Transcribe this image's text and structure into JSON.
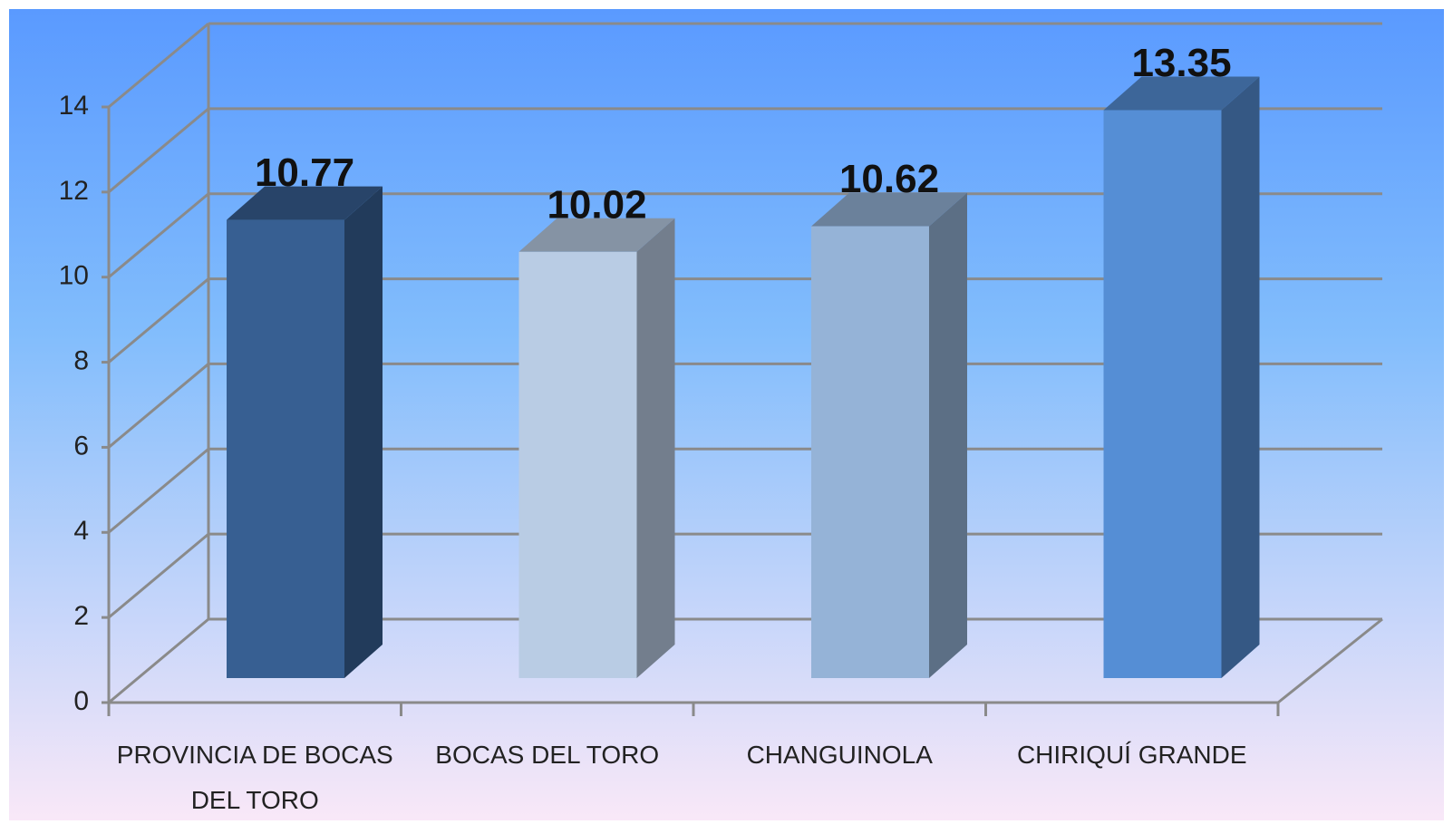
{
  "chart_data": {
    "type": "bar3d",
    "categories": [
      "PROVINCIA DE BOCAS DEL TORO",
      "BOCAS DEL TORO",
      "CHANGUINOLA",
      "CHIRIQUÍ GRANDE"
    ],
    "values": [
      10.77,
      10.02,
      10.62,
      13.35
    ],
    "colors": [
      "#375f92",
      "#b9cce4",
      "#95b3d7",
      "#558ed5"
    ],
    "ylim": [
      0,
      14
    ],
    "yticks": [
      0,
      2,
      4,
      6,
      8,
      10,
      12,
      14
    ],
    "grid": true
  }
}
